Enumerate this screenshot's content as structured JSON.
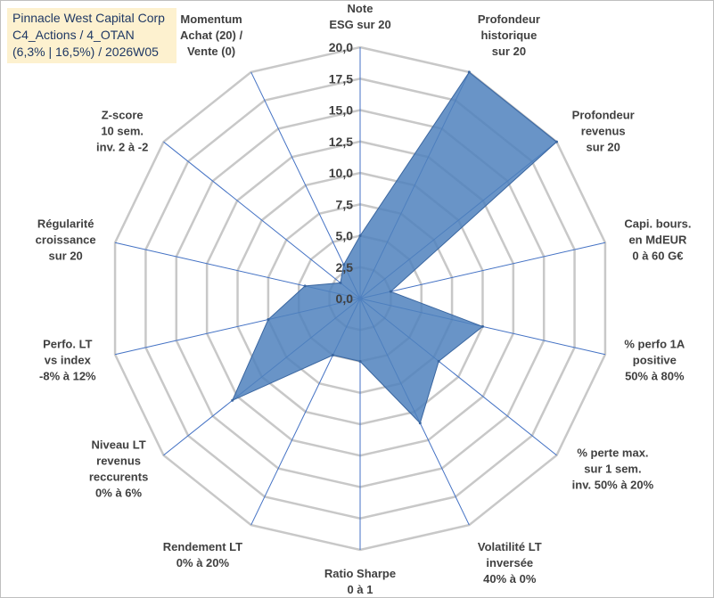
{
  "header": {
    "line1": "Pinnacle West Capital Corp",
    "line2": "C4_Actions / 4_OTAN",
    "line3": "(6,3% | 16,5%) / 2026W05"
  },
  "colors": {
    "fill": "#4f81bd",
    "stroke": "#3a66a0",
    "grid": "#c8c8c8",
    "spoke": "#4472c4",
    "title_bg": "#fdf1cf"
  },
  "chart_data": {
    "type": "radar",
    "rmin": 0,
    "rmax": 20,
    "ticks": [
      "0,0",
      "2,5",
      "5,0",
      "7,5",
      "10,0",
      "12,5",
      "15,0",
      "17,5",
      "20,0"
    ],
    "tick_values": [
      0,
      2.5,
      5,
      7.5,
      10,
      12.5,
      15,
      17.5,
      20
    ],
    "axes": [
      {
        "label": [
          "Note",
          "ESG sur 20"
        ],
        "value": 5.0
      },
      {
        "label": [
          "Profondeur",
          "historique",
          "sur 20"
        ],
        "value": 20.0
      },
      {
        "label": [
          "Profondeur",
          "revenus",
          "sur 20"
        ],
        "value": 20.0
      },
      {
        "label": [
          "Capi. bours.",
          "en MdEUR",
          "0 à 60 G€"
        ],
        "value": 2.5
      },
      {
        "label": [
          "% perfo 1A",
          "positive",
          "50% à 80%"
        ],
        "value": 10.0
      },
      {
        "label": [
          "% perte max.",
          "sur 1 sem.",
          "inv. 50% à 20%"
        ],
        "value": 8.0
      },
      {
        "label": [
          "Volatilité LT",
          "inversée",
          "40% à 0%"
        ],
        "value": 11.0
      },
      {
        "label": [
          "Ratio Sharpe",
          "0 à 1"
        ],
        "value": 5.0
      },
      {
        "label": [
          "Rendement LT",
          "0% à 20%"
        ],
        "value": 5.0
      },
      {
        "label": [
          "Niveau LT",
          "revenus",
          "reccurents",
          "0% à 6%"
        ],
        "value": 13.0
      },
      {
        "label": [
          "Perfo. LT",
          "vs index",
          "-8% à 12%"
        ],
        "value": 7.5
      },
      {
        "label": [
          "Régularité",
          "croissance",
          "sur 20"
        ],
        "value": 4.5
      },
      {
        "label": [
          "Z-score",
          "10 sem.",
          "inv. 2 à -2"
        ],
        "value": 2.0
      },
      {
        "label": [
          "Momentum",
          "Achat (20) /",
          "Vente (0)"
        ],
        "value": 3.0
      }
    ]
  }
}
